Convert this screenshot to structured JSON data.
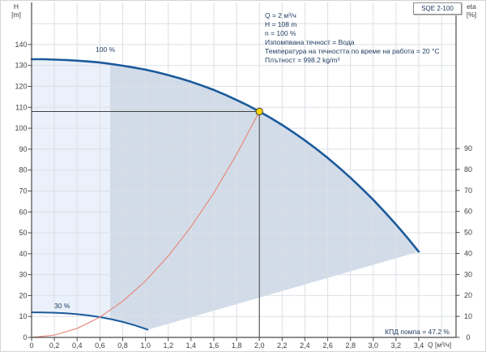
{
  "model": "SQE 2-100",
  "axis_titles": {
    "h_1": "H",
    "h_2": "[m]",
    "eta_1": "eta",
    "eta_2": "[%]",
    "q": "Q [м³/ч]"
  },
  "annotation": {
    "lines": [
      "Q = 2 м³/ч",
      "H = 108 m",
      "n = 100 %",
      "Изпомпвана течност = Вода",
      "Температура на течността по време на работа = 20 °C",
      "Плътност = 998.2 kg/m³"
    ]
  },
  "efficiency_label": "КПД помпа = 47.2 %",
  "chart_data": {
    "type": "line",
    "title": "SQE 2-100 pump performance curve",
    "x_axis": {
      "label": "Q [м³/ч]",
      "min": 0,
      "max": 3.4,
      "tick_step": 0.2,
      "ticks": [
        "0",
        "0,2",
        "0,4",
        "0,6",
        "0,8",
        "1,0",
        "1,2",
        "1,4",
        "1,6",
        "1,8",
        "2,0",
        "2,2",
        "2,4",
        "2,6",
        "2,8",
        "3,0",
        "3,2",
        "3,4"
      ]
    },
    "y_left_axis": {
      "label": "H [m]",
      "min": 0,
      "max": 140,
      "tick_step": 10
    },
    "y_right_axis": {
      "label": "eta [%]",
      "min": 0,
      "max": 90,
      "tick_step": 10
    },
    "grid": true,
    "legend": "none",
    "series": [
      {
        "name": "pump_curve_100pct",
        "label": "100 %",
        "color": "#1b5a9b",
        "width": 2.6,
        "points": [
          [
            0,
            133
          ],
          [
            0.1,
            133
          ],
          [
            0.2,
            132.8
          ],
          [
            0.3,
            132.6
          ],
          [
            0.4,
            132.3
          ],
          [
            0.5,
            131.9
          ],
          [
            0.6,
            131.4
          ],
          [
            0.7,
            130.7
          ],
          [
            0.8,
            129.9
          ],
          [
            0.9,
            129
          ],
          [
            1,
            128
          ],
          [
            1.1,
            126.8
          ],
          [
            1.2,
            125.4
          ],
          [
            1.3,
            123.9
          ],
          [
            1.4,
            122.2
          ],
          [
            1.5,
            120.3
          ],
          [
            1.6,
            118.3
          ],
          [
            1.7,
            116
          ],
          [
            1.8,
            113.5
          ],
          [
            1.9,
            110.9
          ],
          [
            2,
            108
          ],
          [
            2.1,
            104.9
          ],
          [
            2.2,
            101.6
          ],
          [
            2.3,
            98
          ],
          [
            2.4,
            94.2
          ],
          [
            2.5,
            90.1
          ],
          [
            2.6,
            85.8
          ],
          [
            2.7,
            81.2
          ],
          [
            2.8,
            76.3
          ],
          [
            2.9,
            71.2
          ],
          [
            3,
            65.8
          ],
          [
            3.1,
            60
          ],
          [
            3.2,
            54
          ],
          [
            3.3,
            47.6
          ],
          [
            3.4,
            41
          ]
        ]
      },
      {
        "name": "pump_curve_30pct",
        "label": "30 %",
        "color": "#1b5a9b",
        "width": 2,
        "points": [
          [
            0,
            12
          ],
          [
            0.1,
            11.9
          ],
          [
            0.2,
            11.8
          ],
          [
            0.3,
            11.5
          ],
          [
            0.4,
            11.1
          ],
          [
            0.5,
            10.5
          ],
          [
            0.6,
            9.7
          ],
          [
            0.7,
            8.7
          ],
          [
            0.8,
            7.4
          ],
          [
            0.9,
            5.9
          ],
          [
            1,
            4.1
          ],
          [
            1.02,
            3.7
          ]
        ]
      },
      {
        "name": "system_curve",
        "label": "",
        "color": "#e58a7d",
        "width": 1.2,
        "points": [
          [
            0,
            0
          ],
          [
            0.2,
            1.1
          ],
          [
            0.4,
            4.3
          ],
          [
            0.6,
            9.7
          ],
          [
            0.8,
            17.3
          ],
          [
            1,
            27
          ],
          [
            1.2,
            38.9
          ],
          [
            1.4,
            52.9
          ],
          [
            1.6,
            69.1
          ],
          [
            1.8,
            87.5
          ],
          [
            2,
            108
          ]
        ]
      }
    ],
    "duty_point": {
      "q": 2,
      "h": 108,
      "eta_pct": 47.2
    },
    "operating_region": {
      "split_q": 0.69,
      "fill_light": "#eaf1fa",
      "fill_dark": "#d2dce9"
    },
    "colors": {
      "grid": "#dcdfe5",
      "axis": "#4a4a4a",
      "tick_text": "#404040",
      "duty_marker": "#ffd400",
      "duty_lines": "#3f3f3f"
    }
  }
}
